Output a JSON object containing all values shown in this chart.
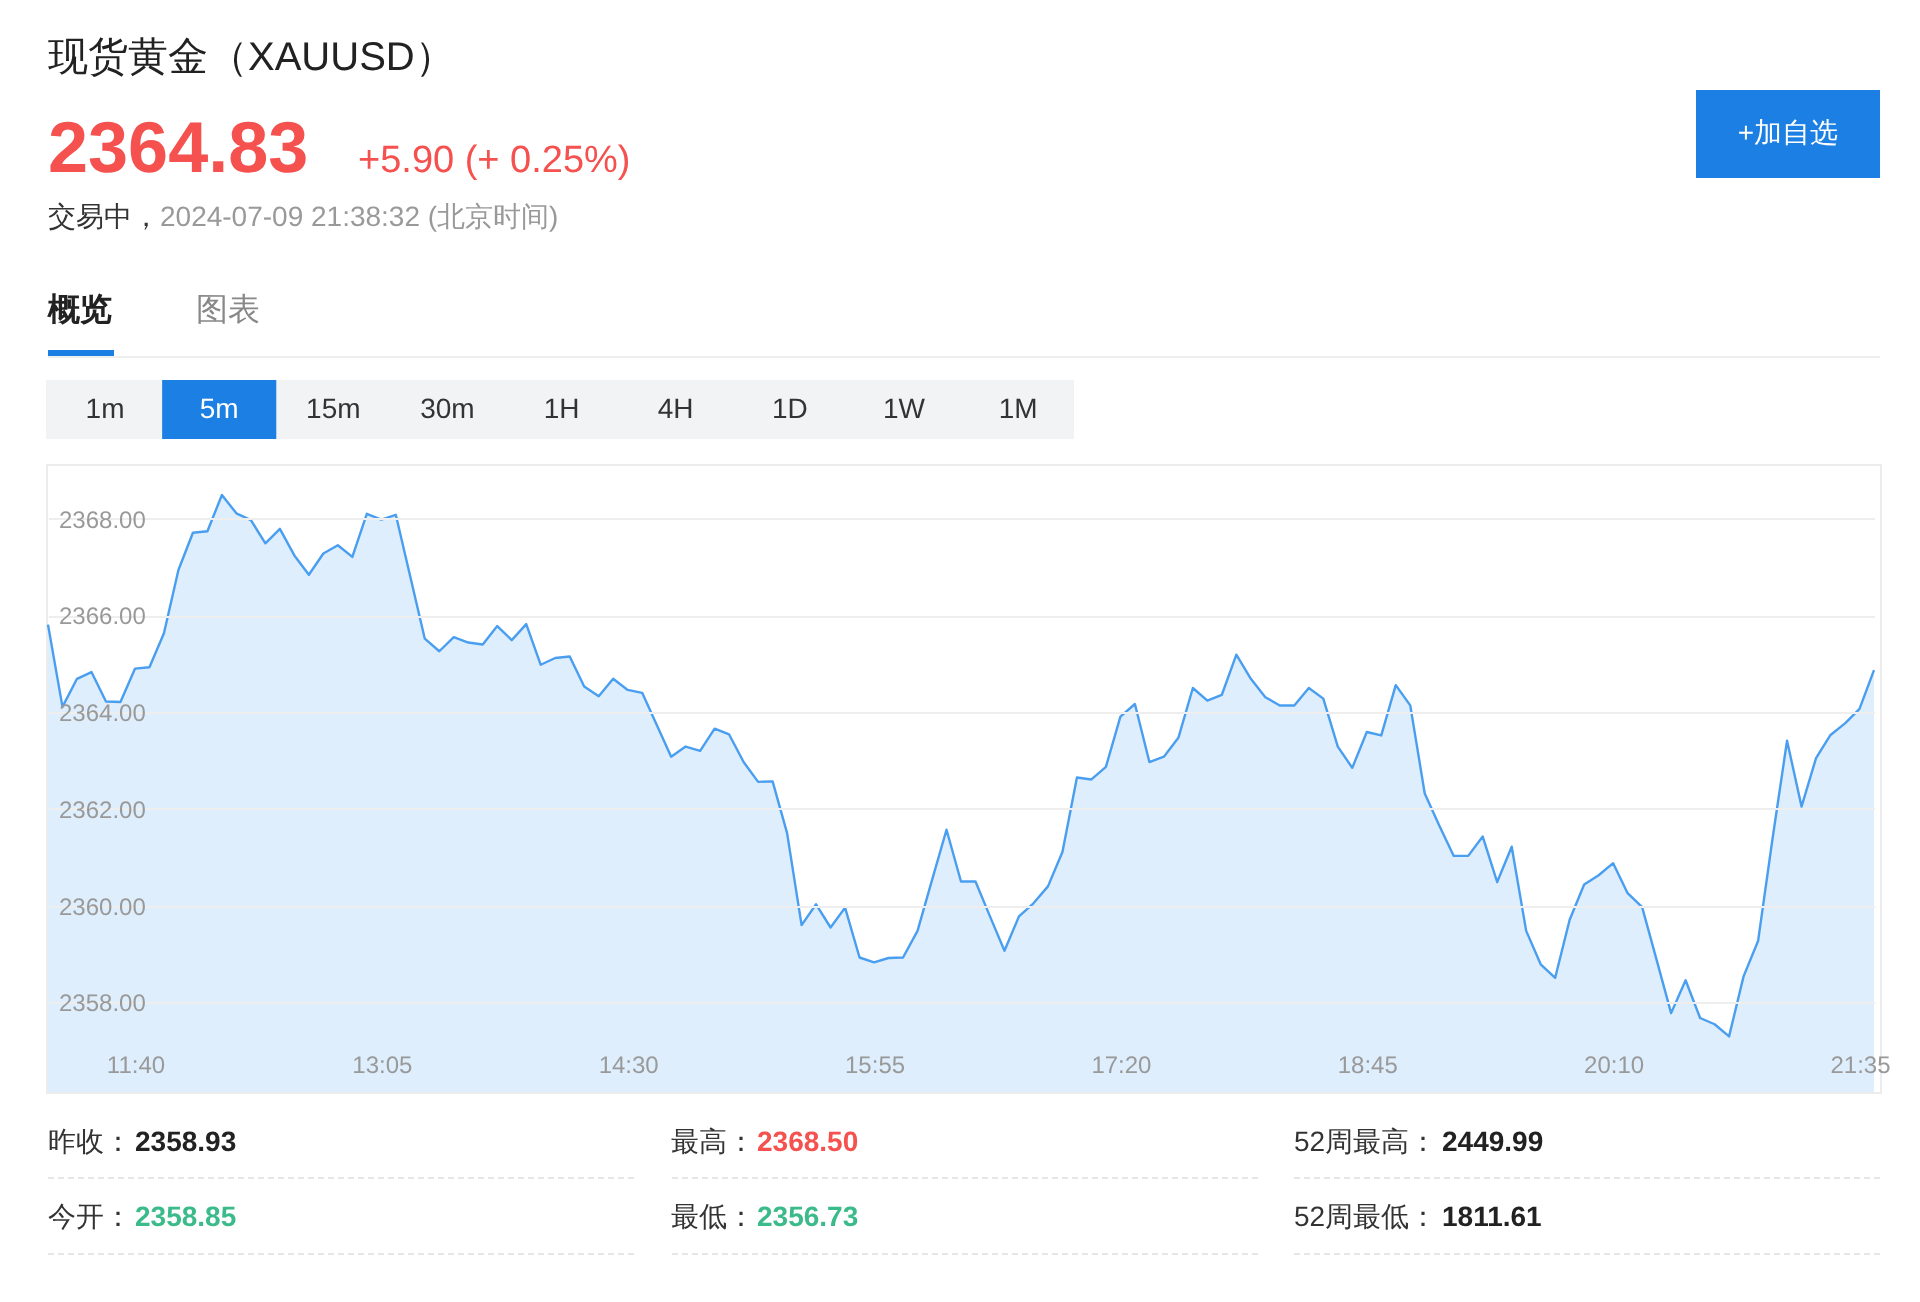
{
  "chart_data": {
    "type": "area",
    "title": "现货黄金（XAUUSD）",
    "categories": [
      null,
      null,
      null,
      null,
      null,
      null,
      "11:40",
      null,
      null,
      null,
      null,
      null,
      null,
      null,
      null,
      null,
      null,
      null,
      null,
      null,
      null,
      null,
      null,
      "13:05",
      null,
      null,
      null,
      null,
      null,
      null,
      null,
      null,
      null,
      null,
      null,
      null,
      null,
      null,
      null,
      null,
      "14:30",
      null,
      null,
      null,
      null,
      null,
      null,
      null,
      null,
      null,
      null,
      null,
      null,
      null,
      null,
      null,
      null,
      "15:55",
      null,
      null,
      null,
      null,
      null,
      null,
      null,
      null,
      null,
      null,
      null,
      null,
      null,
      null,
      null,
      null,
      "17:20",
      null,
      null,
      null,
      null,
      null,
      null,
      null,
      null,
      null,
      null,
      null,
      null,
      null,
      null,
      null,
      null,
      "18:45",
      null,
      null,
      null,
      null,
      null,
      null,
      null,
      null,
      null,
      null,
      null,
      null,
      null,
      null,
      null,
      null,
      "20:10",
      null,
      null,
      null,
      null,
      null,
      null,
      null,
      null,
      null,
      null,
      null,
      null,
      null,
      null,
      null,
      null,
      "21:35",
      null
    ],
    "values": [
      2365.81,
      2364.11,
      2364.69,
      2364.83,
      2364.22,
      2364.21,
      2364.9,
      2364.93,
      2365.63,
      2366.94,
      2367.71,
      2367.74,
      2368.49,
      2368.11,
      2367.97,
      2367.49,
      2367.79,
      2367.24,
      2366.84,
      2367.28,
      2367.45,
      2367.21,
      2368.1,
      2367.98,
      2368.08,
      2366.8,
      2365.52,
      2365.26,
      2365.55,
      2365.44,
      2365.4,
      2365.78,
      2365.49,
      2365.82,
      2364.98,
      2365.12,
      2365.15,
      2364.53,
      2364.33,
      2364.69,
      2364.46,
      2364.4,
      2363.74,
      2363.08,
      2363.29,
      2363.2,
      2363.66,
      2363.54,
      2362.97,
      2362.56,
      2362.57,
      2361.5,
      2359.6,
      2360.03,
      2359.55,
      2359.96,
      2358.93,
      2358.83,
      2358.92,
      2358.93,
      2359.48,
      2360.53,
      2361.57,
      2360.5,
      2360.5,
      2359.78,
      2359.07,
      2359.78,
      2360.05,
      2360.4,
      2361.11,
      2362.65,
      2362.61,
      2362.87,
      2363.91,
      2364.17,
      2362.97,
      2363.08,
      2363.47,
      2364.5,
      2364.24,
      2364.36,
      2365.19,
      2364.69,
      2364.31,
      2364.14,
      2364.14,
      2364.5,
      2364.28,
      2363.29,
      2362.85,
      2363.59,
      2363.52,
      2364.56,
      2364.14,
      2362.32,
      2361.66,
      2361.03,
      2361.03,
      2361.43,
      2360.49,
      2361.22,
      2359.48,
      2358.79,
      2358.51,
      2359.71,
      2360.44,
      2360.63,
      2360.88,
      2360.26,
      2359.97,
      2358.88,
      2357.78,
      2358.46,
      2357.68,
      2357.55,
      2357.3,
      2358.54,
      2359.27,
      2361.39,
      2363.41,
      2362.05,
      2363.05,
      2363.53,
      2363.77,
      2364.07,
      2364.87
    ],
    "color": "#4a9ef0",
    "ylim": [
      2356.15,
      2369.13
    ],
    "yticks": [
      {
        "value": 2358,
        "label": "2358.00"
      },
      {
        "value": 2360,
        "label": "2360.00"
      },
      {
        "value": 2362,
        "label": "2362.00"
      },
      {
        "value": 2364,
        "label": "2364.00"
      },
      {
        "value": 2366,
        "label": "2366.00"
      },
      {
        "value": 2368,
        "label": "2368.00"
      }
    ],
    "grid": "y",
    "annotations": [
      "2364.83",
      "+5.90 (+ 0.25%)",
      "交易中，",
      "2024-07-09 21:38:32 (北京时间)",
      "+加自选",
      "概览",
      "图表",
      "1m",
      "5m",
      "15m",
      "30m",
      "1H",
      "4H",
      "1D",
      "1W",
      "1M",
      "昨收：",
      "2358.93",
      "最高：",
      "2368.50",
      "52周最高：",
      "2449.99",
      "今开：",
      "2358.85",
      "最低：",
      "2356.73",
      "52周最低：",
      "1811.61"
    ]
  }
}
